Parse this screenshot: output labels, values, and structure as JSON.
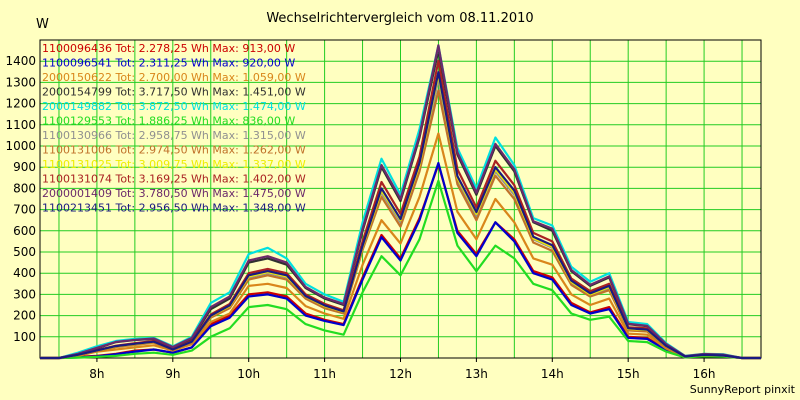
{
  "chart_data": {
    "type": "line",
    "title": "Wechselrichtervergleich vom 08.11.2010",
    "ylabel": "W",
    "xlabel": "",
    "ylim": [
      0,
      1500
    ],
    "yticks": [
      100,
      200,
      300,
      400,
      500,
      600,
      700,
      800,
      900,
      1000,
      1100,
      1200,
      1300,
      1400
    ],
    "xlim": [
      7.25,
      16.75
    ],
    "xticks": [
      "8h",
      "9h",
      "10h",
      "11h",
      "12h",
      "13h",
      "14h",
      "15h",
      "16h"
    ],
    "grid": true,
    "legend_position": "top-left",
    "x": [
      7.25,
      7.5,
      7.75,
      8.0,
      8.25,
      8.5,
      8.75,
      9.0,
      9.25,
      9.5,
      9.75,
      10.0,
      10.25,
      10.5,
      10.75,
      11.0,
      11.25,
      11.5,
      11.75,
      12.0,
      12.25,
      12.5,
      12.75,
      13.0,
      13.25,
      13.5,
      13.75,
      14.0,
      14.25,
      14.5,
      14.75,
      15.0,
      15.25,
      15.5,
      15.75,
      16.0,
      16.25,
      16.5,
      16.75
    ],
    "series": [
      {
        "name": "1100096436 Tot: 2.278,25 Wh Max: 913,00 W",
        "color": "#CC0000",
        "values": [
          0,
          0,
          5,
          10,
          20,
          35,
          40,
          25,
          50,
          160,
          200,
          300,
          310,
          290,
          210,
          180,
          160,
          380,
          580,
          470,
          660,
          913,
          600,
          490,
          640,
          560,
          410,
          380,
          260,
          215,
          240,
          100,
          95,
          40,
          5,
          10,
          8,
          0,
          0
        ]
      },
      {
        "name": "1100096541 Tot: 2.311,25 Wh Max: 920,00 W",
        "color": "#0000CC",
        "values": [
          0,
          0,
          3,
          8,
          18,
          30,
          40,
          25,
          50,
          150,
          190,
          290,
          300,
          280,
          200,
          175,
          155,
          370,
          570,
          460,
          650,
          920,
          590,
          480,
          640,
          550,
          400,
          370,
          250,
          210,
          230,
          95,
          90,
          38,
          5,
          10,
          8,
          0,
          0
        ]
      },
      {
        "name": "2000150622 Tot: 2.700,00 Wh Max: 1.059,00 W",
        "color": "#D9861A",
        "values": [
          0,
          0,
          10,
          30,
          40,
          50,
          60,
          35,
          65,
          170,
          210,
          340,
          350,
          330,
          245,
          210,
          185,
          440,
          650,
          540,
          760,
          1059,
          690,
          560,
          750,
          640,
          470,
          440,
          300,
          250,
          280,
          115,
          110,
          45,
          5,
          12,
          10,
          0,
          0
        ]
      },
      {
        "name": "2000154799 Tot: 3.717,50 Wh Max: 1.451,00 W",
        "color": "#303030",
        "values": [
          0,
          0,
          20,
          45,
          75,
          85,
          90,
          50,
          90,
          230,
          280,
          450,
          470,
          440,
          330,
          280,
          250,
          600,
          900,
          740,
          1040,
          1451,
          960,
          770,
          1000,
          880,
          640,
          600,
          410,
          340,
          380,
          160,
          150,
          65,
          8,
          18,
          15,
          0,
          0
        ]
      },
      {
        "name": "2000149882 Tot: 3.872,50 Wh Max: 1.474,00 W",
        "color": "#00E0E0",
        "values": [
          0,
          0,
          25,
          55,
          80,
          90,
          95,
          55,
          100,
          260,
          310,
          490,
          520,
          470,
          350,
          300,
          265,
          640,
          940,
          770,
          1080,
          1474,
          990,
          800,
          1040,
          910,
          660,
          625,
          430,
          360,
          400,
          170,
          160,
          70,
          10,
          20,
          18,
          0,
          0
        ]
      },
      {
        "name": "1100129553 Tot: 1.886,25 Wh Max: 836,00 W",
        "color": "#22DD22",
        "values": [
          0,
          0,
          2,
          5,
          10,
          20,
          25,
          15,
          35,
          100,
          140,
          240,
          250,
          230,
          160,
          130,
          110,
          310,
          480,
          390,
          560,
          836,
          530,
          410,
          530,
          470,
          350,
          320,
          210,
          180,
          195,
          80,
          75,
          30,
          3,
          8,
          6,
          0,
          0
        ]
      },
      {
        "name": "1100130966 Tot: 2.958,75 Wh Max: 1.315,00 W",
        "color": "#909090",
        "values": [
          0,
          0,
          15,
          35,
          55,
          65,
          75,
          40,
          75,
          195,
          240,
          380,
          400,
          380,
          285,
          240,
          215,
          520,
          780,
          640,
          900,
          1315,
          840,
          670,
          880,
          770,
          560,
          520,
          355,
          295,
          330,
          135,
          130,
          55,
          7,
          15,
          12,
          0,
          0
        ]
      },
      {
        "name": "1100131006 Tot: 2.974,50 Wh Max: 1.262,00 W",
        "color": "#C0722A",
        "values": [
          0,
          0,
          14,
          33,
          52,
          62,
          72,
          38,
          72,
          190,
          235,
          370,
          390,
          370,
          280,
          235,
          210,
          510,
          760,
          620,
          880,
          1262,
          820,
          650,
          860,
          750,
          545,
          505,
          345,
          290,
          320,
          130,
          125,
          52,
          7,
          14,
          12,
          0,
          0
        ]
      },
      {
        "name": "1100131025 Tot: 3.009,75 Wh Max: 1.337,00 W",
        "color": "#EEEE00",
        "values": [
          0,
          0,
          15,
          35,
          55,
          66,
          76,
          40,
          76,
          198,
          245,
          385,
          405,
          385,
          290,
          245,
          218,
          525,
          790,
          650,
          910,
          1337,
          850,
          680,
          890,
          780,
          565,
          525,
          360,
          300,
          335,
          137,
          132,
          56,
          7,
          15,
          12,
          0,
          0
        ]
      },
      {
        "name": "1100131074 Tot: 3.169,25 Wh Max: 1.402,00 W",
        "color": "#AA2222",
        "values": [
          0,
          0,
          16,
          37,
          58,
          70,
          80,
          42,
          80,
          205,
          255,
          400,
          420,
          400,
          300,
          255,
          225,
          550,
          830,
          680,
          950,
          1402,
          890,
          710,
          930,
          815,
          590,
          550,
          375,
          315,
          350,
          145,
          140,
          59,
          8,
          16,
          13,
          0,
          0
        ]
      },
      {
        "name": "2000001409 Tot: 3.780,50 Wh Max: 1.475,00 W",
        "color": "#6B2A6B",
        "values": [
          0,
          0,
          20,
          48,
          76,
          86,
          92,
          52,
          95,
          240,
          290,
          460,
          480,
          450,
          335,
          285,
          255,
          610,
          910,
          750,
          1050,
          1475,
          970,
          780,
          1010,
          890,
          645,
          610,
          415,
          345,
          385,
          162,
          152,
          66,
          9,
          19,
          16,
          0,
          0
        ]
      },
      {
        "name": "1100213451 Tot: 2.956,50 Wh Max: 1.348,00 W",
        "color": "#1A1A80",
        "values": [
          0,
          0,
          15,
          36,
          56,
          67,
          77,
          40,
          77,
          200,
          248,
          390,
          410,
          390,
          292,
          248,
          220,
          530,
          800,
          655,
          920,
          1348,
          858,
          688,
          900,
          790,
          572,
          532,
          365,
          305,
          340,
          140,
          134,
          57,
          7,
          15,
          12,
          0,
          0
        ]
      }
    ]
  },
  "footer": {
    "credit": "SunnyReport pinxit"
  }
}
